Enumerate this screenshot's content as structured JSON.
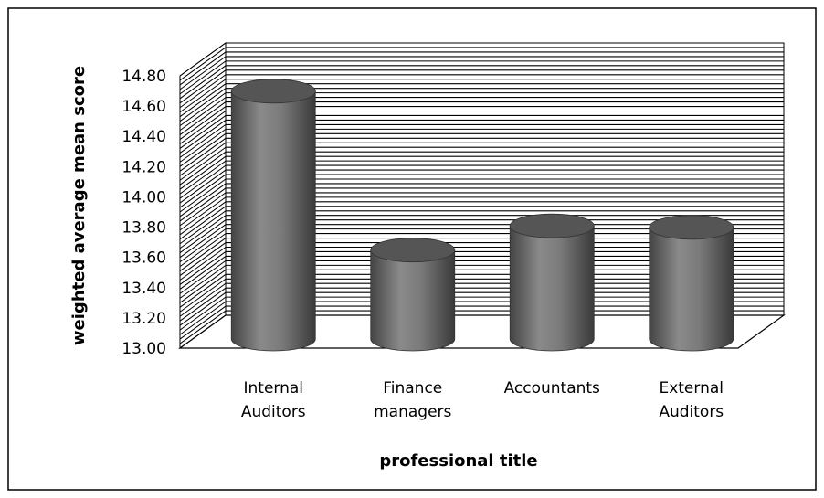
{
  "chart_data": {
    "type": "bar",
    "style": "3d-cylinder",
    "categories": [
      [
        "Internal",
        "Auditors"
      ],
      [
        "Finance",
        "managers"
      ],
      [
        "Accountants"
      ],
      [
        "External",
        "Auditors"
      ]
    ],
    "values": [
      14.65,
      13.6,
      13.76,
      13.75
    ],
    "xlabel": "professional title",
    "ylabel": "weighted average mean score",
    "ylim": [
      13.0,
      14.8
    ],
    "yticks": [
      "13.00",
      "13.20",
      "13.40",
      "13.60",
      "13.80",
      "14.00",
      "14.20",
      "14.40",
      "14.60",
      "14.80"
    ],
    "grid": true,
    "legend": "none",
    "colors": {
      "bar": "#7a7a7a",
      "bar_dark": "#3e3e3e",
      "bar_top": "#555555",
      "grid": "#000000",
      "frame": "#000000"
    }
  }
}
